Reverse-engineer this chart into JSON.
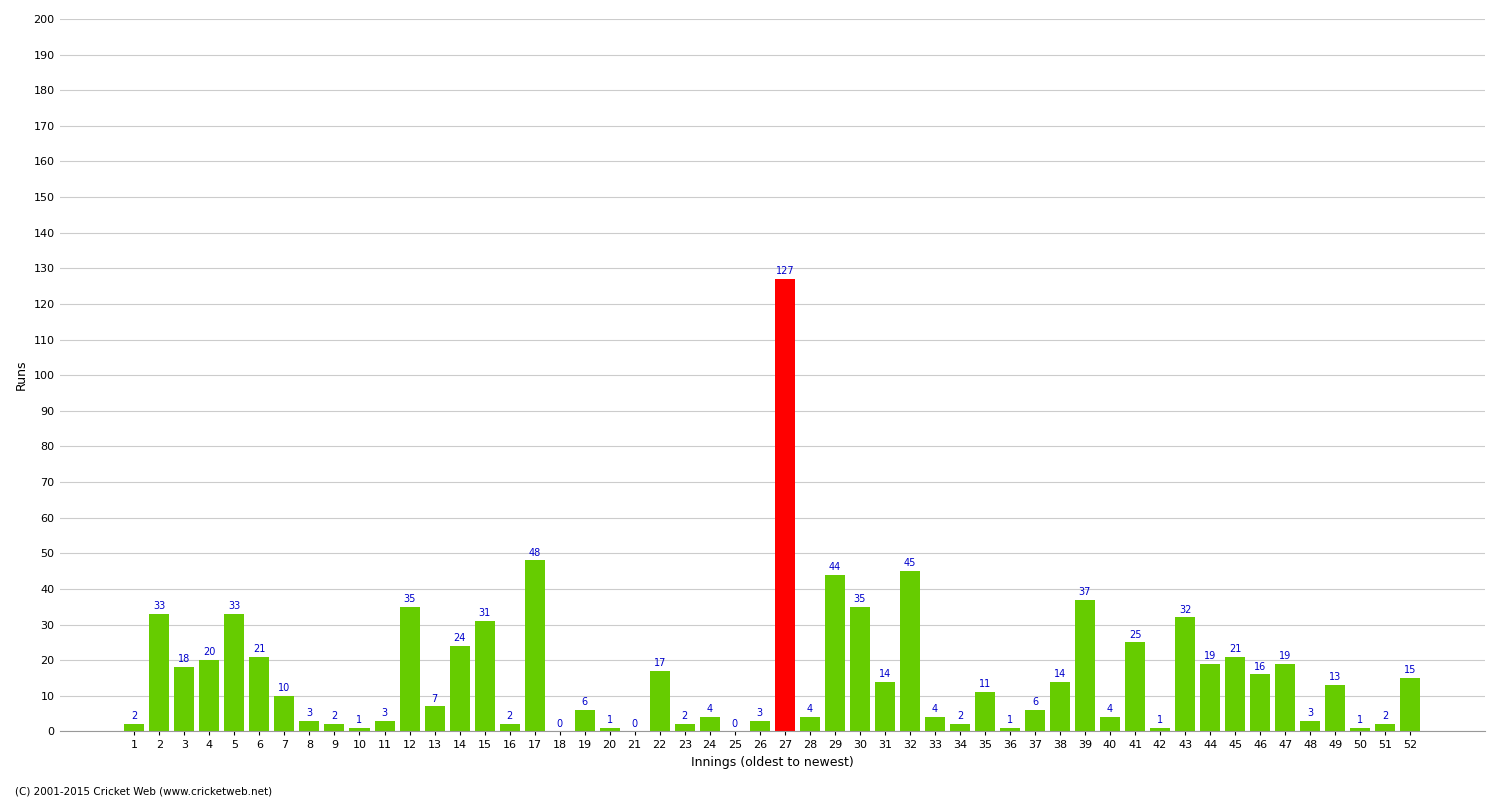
{
  "innings": [
    1,
    2,
    3,
    4,
    5,
    6,
    7,
    8,
    9,
    10,
    11,
    12,
    13,
    14,
    15,
    16,
    17,
    18,
    19,
    20,
    21,
    22,
    23,
    24,
    25,
    26,
    27,
    28,
    29,
    30,
    31,
    32,
    33,
    34,
    35,
    36,
    37,
    38,
    39,
    40,
    41,
    42,
    43,
    44,
    45,
    46,
    47,
    48,
    49,
    50,
    51,
    52
  ],
  "runs": [
    2,
    33,
    18,
    20,
    33,
    21,
    10,
    3,
    2,
    1,
    3,
    35,
    7,
    24,
    31,
    2,
    48,
    0,
    6,
    1,
    0,
    17,
    2,
    4,
    0,
    3,
    127,
    4,
    44,
    35,
    14,
    45,
    4,
    2,
    11,
    1,
    6,
    14,
    37,
    4,
    25,
    1,
    32,
    19,
    21,
    16,
    19,
    3,
    13,
    1,
    2,
    15
  ],
  "highlight_index": 26,
  "highlight_color": "#ff0000",
  "ylabel": "Runs",
  "xlabel": "Innings (oldest to newest)",
  "ylim": [
    0,
    200
  ],
  "yticks": [
    0,
    10,
    20,
    30,
    40,
    50,
    60,
    70,
    80,
    90,
    100,
    110,
    120,
    130,
    140,
    150,
    160,
    170,
    180,
    190,
    200
  ],
  "bar_color_default": "#66cc00",
  "label_color": "#0000cc",
  "label_fontsize": 7,
  "axis_label_fontsize": 9,
  "tick_fontsize": 8,
  "background_color": "#ffffff",
  "grid_color": "#cccccc",
  "copyright": "(C) 2001-2015 Cricket Web (www.cricketweb.net)"
}
